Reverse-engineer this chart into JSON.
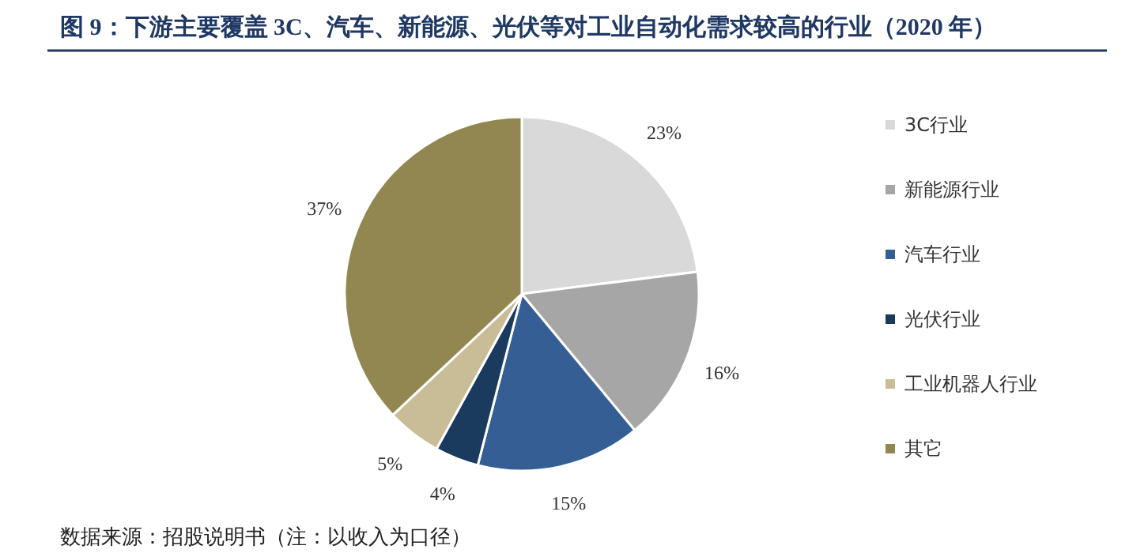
{
  "chart_data": {
    "type": "pie",
    "title": "图 9：下游主要覆盖 3C、汽车、新能源、光伏等对工业自动化需求较高的行业（2020 年）",
    "categories": [
      "3C行业",
      "新能源行业",
      "汽车行业",
      "光伏行业",
      "工业机器人行业",
      "其它"
    ],
    "values": [
      23,
      16,
      15,
      4,
      5,
      37
    ],
    "colors": [
      "#d9d9d9",
      "#a6a6a6",
      "#355f94",
      "#1a3a5e",
      "#c8bd96",
      "#938751"
    ],
    "value_labels": [
      "23%",
      "16%",
      "15%",
      "4%",
      "5%",
      "37%"
    ],
    "legend": "right",
    "annotations": [
      "数据来源：招股说明书（注：以收入为口径）"
    ]
  }
}
